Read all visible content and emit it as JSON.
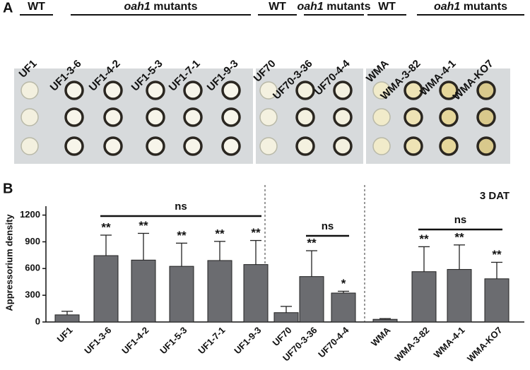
{
  "panel_a": {
    "label": "A",
    "groups": [
      {
        "label": "WT"
      },
      {
        "label_italic": "oah1",
        "label": "mutants"
      },
      {
        "label": "WT"
      },
      {
        "label_italic": "oah1",
        "label": "mutants"
      },
      {
        "label": "WT"
      },
      {
        "label_italic": "oah1",
        "label": "mutants"
      }
    ],
    "strains": [
      "UF1",
      "UF1-3-6",
      "UF1-4-2",
      "UF1-5-3",
      "UF1-7-1",
      "UF1-9-3",
      "UF70",
      "UF70-3-36",
      "UF70-4-4",
      "WMA",
      "WMA-3-82",
      "WMA-4-1",
      "WMA-KO7"
    ]
  },
  "chart_data": {
    "type": "bar",
    "panel_label": "B",
    "annotation": "3 DAT",
    "ylabel": "Appressorium density",
    "categories": [
      "UF1",
      "UF1-3-6",
      "UF1-4-2",
      "UF1-5-3",
      "UF1-7-1",
      "UF1-9-3",
      "UF70",
      "UF70-3-36",
      "UF70-4-4",
      "WMA",
      "WMA-3-82",
      "WMA-4-1",
      "WMA-KO7"
    ],
    "values": [
      80,
      745,
      695,
      625,
      690,
      645,
      105,
      510,
      325,
      30,
      565,
      590,
      485
    ],
    "errors": [
      40,
      230,
      300,
      260,
      215,
      270,
      70,
      290,
      20,
      8,
      280,
      275,
      185
    ],
    "significance": [
      null,
      "**",
      "**",
      "**",
      "**",
      "**",
      null,
      "**",
      "*",
      null,
      "**",
      "**",
      "**"
    ],
    "brackets": [
      "ns",
      "ns",
      "ns"
    ],
    "color": "#6b6c70",
    "ylim": [
      0,
      1300
    ],
    "yticks": [
      0,
      300,
      600,
      900,
      1200
    ]
  }
}
